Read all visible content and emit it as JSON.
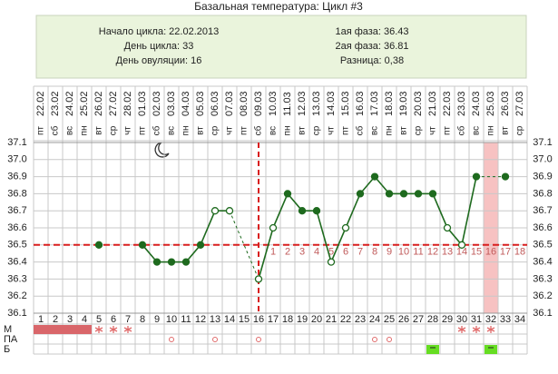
{
  "chart_data": {
    "type": "line",
    "title": "Базальная температура: Цикл #3",
    "summary_left": [
      "Начало цикла: 22.02.2013",
      "День цикла: 33",
      "День овуляции: 16"
    ],
    "summary_right": [
      "1ая фаза: 36.43",
      "2ая фаза: 36.81",
      "Разница: 0,38"
    ],
    "dates": [
      "22.02",
      "23.02",
      "24.02",
      "25.02",
      "26.02",
      "27.02",
      "28.02",
      "01.03",
      "02.03",
      "03.03",
      "04.03",
      "05.03",
      "06.03",
      "07.03",
      "08.03",
      "09.03",
      "10.03",
      "11.03",
      "12.03",
      "13.03",
      "14.03",
      "15.03",
      "16.03",
      "17.03",
      "18.03",
      "19.03",
      "20.03",
      "21.03",
      "22.03",
      "23.03",
      "24.03",
      "25.03",
      "26.03",
      "27.03"
    ],
    "weekdays": [
      "пт",
      "сб",
      "вс",
      "пн",
      "вт",
      "ср",
      "чт",
      "пт",
      "сб",
      "вс",
      "пн",
      "вт",
      "ср",
      "чт",
      "пт",
      "сб",
      "вс",
      "пн",
      "вт",
      "ср",
      "чт",
      "пт",
      "сб",
      "вс",
      "пн",
      "вт",
      "ср",
      "чт",
      "пт",
      "сб",
      "вс",
      "пн",
      "вт",
      "ср"
    ],
    "categories": [
      1,
      2,
      3,
      4,
      5,
      6,
      7,
      8,
      9,
      10,
      11,
      12,
      13,
      14,
      15,
      16,
      17,
      18,
      19,
      20,
      21,
      22,
      23,
      24,
      25,
      26,
      27,
      28,
      29,
      30,
      31,
      32,
      33,
      34
    ],
    "values": [
      null,
      null,
      null,
      null,
      36.5,
      null,
      null,
      36.5,
      36.4,
      36.4,
      36.4,
      36.5,
      36.7,
      36.7,
      null,
      36.3,
      36.6,
      36.8,
      36.7,
      36.7,
      36.4,
      36.6,
      36.8,
      36.9,
      36.8,
      36.8,
      36.8,
      36.8,
      36.6,
      36.5,
      36.9,
      null,
      36.9,
      null
    ],
    "open_markers": [
      false,
      false,
      false,
      false,
      false,
      false,
      false,
      false,
      false,
      false,
      false,
      false,
      true,
      true,
      false,
      true,
      true,
      false,
      false,
      false,
      true,
      true,
      false,
      false,
      false,
      false,
      false,
      false,
      true,
      true,
      false,
      false,
      false,
      false
    ],
    "color": "#1e6a1e",
    "coverline": 36.5,
    "ovulation_day": 16,
    "highlight_day": 32,
    "luteal_day_labels": [
      1,
      2,
      3,
      4,
      5,
      6,
      7,
      8,
      9,
      10,
      11,
      12,
      13,
      14,
      15,
      16,
      17,
      18
    ],
    "ylim": [
      36.1,
      37.1
    ],
    "yticks": [
      36.1,
      36.2,
      36.3,
      36.4,
      36.5,
      36.6,
      36.7,
      36.8,
      36.9,
      {
        "value": 37,
        "label": "37.0"
      },
      37.1
    ],
    "rows": [
      {
        "name": "М",
        "marks": [
          "block",
          "block",
          "block",
          "block",
          "star",
          "star",
          "star",
          null,
          null,
          null,
          null,
          null,
          null,
          null,
          null,
          null,
          null,
          null,
          null,
          null,
          null,
          null,
          null,
          null,
          null,
          null,
          null,
          null,
          null,
          "star",
          "star",
          "star",
          null,
          null
        ]
      },
      {
        "name": "ПА",
        "marks": [
          null,
          null,
          null,
          null,
          null,
          null,
          null,
          null,
          null,
          "circle",
          null,
          null,
          "circle",
          null,
          null,
          "circle",
          null,
          null,
          null,
          null,
          null,
          null,
          null,
          "circle",
          "circle",
          null,
          null,
          null,
          null,
          null,
          null,
          null,
          null,
          null
        ]
      },
      {
        "name": "Б",
        "marks": [
          null,
          null,
          null,
          null,
          null,
          null,
          null,
          null,
          null,
          null,
          null,
          null,
          null,
          null,
          null,
          null,
          null,
          null,
          null,
          null,
          null,
          null,
          null,
          null,
          null,
          null,
          null,
          "minus",
          null,
          null,
          null,
          "minus",
          null,
          null
        ]
      }
    ]
  }
}
